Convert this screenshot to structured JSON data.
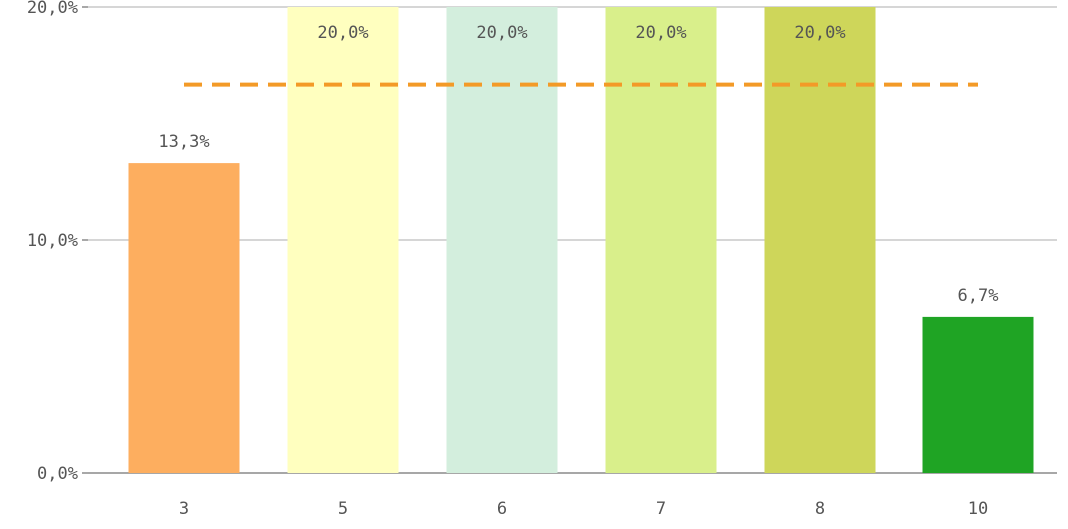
{
  "chart_data": {
    "type": "bar",
    "title": "",
    "xlabel": "",
    "ylabel": "",
    "categories": [
      "3",
      "5",
      "6",
      "7",
      "8",
      "10"
    ],
    "values": [
      13.3,
      20.0,
      20.0,
      20.0,
      20.0,
      6.7
    ],
    "data_labels": [
      "13,3%",
      "20,0%",
      "20,0%",
      "20,0%",
      "20,0%",
      "6,7%"
    ],
    "bar_colors": [
      "#fdae5f",
      "#ffffbf",
      "#d3eedd",
      "#d9ef8b",
      "#ced65a",
      "#1fa424"
    ],
    "ylim": [
      0,
      20
    ],
    "y_ticks": [
      0,
      10,
      20
    ],
    "y_tick_labels": [
      "0,0%",
      "10,0%",
      "20,0%"
    ],
    "reference_line": {
      "value": 16.67,
      "color": "#f39a27",
      "style": "dashed"
    },
    "grid": true,
    "legend": "none"
  }
}
